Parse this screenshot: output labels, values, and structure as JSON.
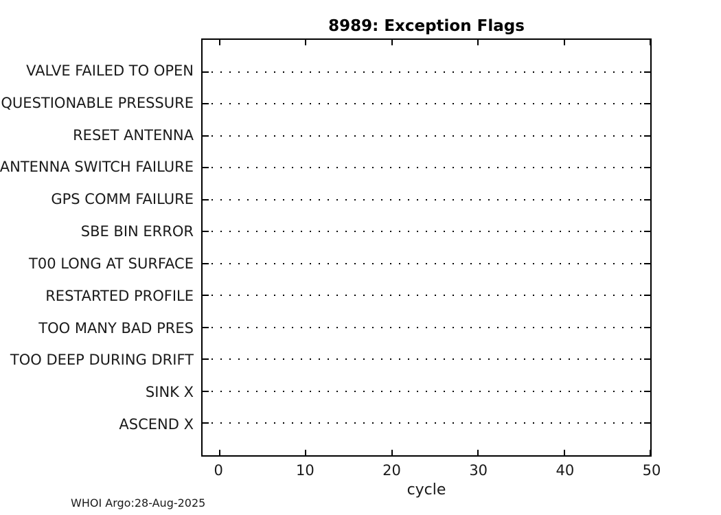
{
  "chart_data": {
    "type": "scatter",
    "title": "8989: Exception Flags",
    "xlabel": "cycle",
    "ylabel": "",
    "xlim": [
      -2,
      50
    ],
    "x_ticks": [
      0,
      10,
      20,
      30,
      40,
      50
    ],
    "categories_order": "top-to-bottom",
    "categories": [
      "VALVE FAILED TO OPEN",
      "QUESTIONABLE PRESSURE",
      "RESET ANTENNA",
      "ANTENNA SWITCH FAILURE",
      "GPS COMM FAILURE",
      "SBE BIN ERROR",
      "T00 LONG AT SURFACE",
      "RESTARTED PROFILE",
      "TOO MANY BAD PRES",
      "TOO DEEP DURING DRIFT",
      "SINK X",
      "ASCEND X"
    ],
    "series": [],
    "grid": "black dotted horizontal reference line per category, no data points plotted",
    "legend": "none",
    "footer": "WHOI Argo:28-Aug-2025",
    "colors": {
      "line": "#000000",
      "text": "#1a1a1a",
      "background": "#ffffff"
    }
  }
}
